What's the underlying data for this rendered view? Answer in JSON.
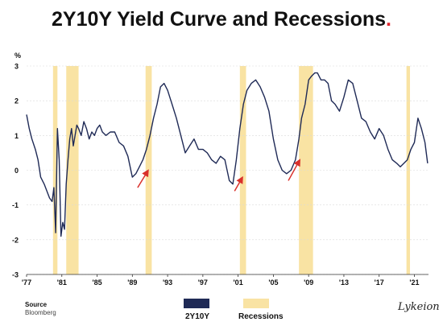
{
  "title": "2Y10Y Yield Curve and Recessions",
  "title_dot": ".",
  "source": {
    "label": "Source",
    "value": "Bloomberg"
  },
  "signature": "Lykeion",
  "colors": {
    "series": "#1f2a56",
    "recession": "#f9e3a3",
    "arrow": "#d9302b",
    "accent": "#e0262e",
    "grid": "#d9d9d9"
  },
  "chart_data": {
    "type": "line",
    "title": "2Y10Y Yield Curve and Recessions",
    "ylabel": "%",
    "xlabel": "",
    "xlim": [
      1977,
      2022.6
    ],
    "ylim": [
      -3,
      3
    ],
    "x_ticks": [
      {
        "value": 1977,
        "label": "'77"
      },
      {
        "value": 1981,
        "label": "'81"
      },
      {
        "value": 1985,
        "label": "'85"
      },
      {
        "value": 1989,
        "label": "'89"
      },
      {
        "value": 1993,
        "label": "'93"
      },
      {
        "value": 1997,
        "label": "'97"
      },
      {
        "value": 2001,
        "label": "'01"
      },
      {
        "value": 2005,
        "label": "'05"
      },
      {
        "value": 2009,
        "label": "'09"
      },
      {
        "value": 2013,
        "label": "'13"
      },
      {
        "value": 2017,
        "label": "'17"
      },
      {
        "value": 2021,
        "label": "'21"
      }
    ],
    "y_ticks": [
      {
        "value": 3,
        "label": "3"
      },
      {
        "value": 2,
        "label": "2"
      },
      {
        "value": 1,
        "label": "1"
      },
      {
        "value": 0,
        "label": "0"
      },
      {
        "value": -1,
        "label": "-1"
      },
      {
        "value": -2,
        "label": "-2"
      },
      {
        "value": -3,
        "label": "-3"
      }
    ],
    "grid": "horizontal",
    "legend_position": "bottom-center",
    "legend": [
      {
        "name": "2Y10Y",
        "kind": "line"
      },
      {
        "name": "Recessions",
        "kind": "band"
      }
    ],
    "series": [
      {
        "name": "2Y10Y",
        "x": [
          1977.0,
          1977.3,
          1977.6,
          1978.0,
          1978.3,
          1978.6,
          1979.0,
          1979.3,
          1979.6,
          1979.9,
          1980.1,
          1980.3,
          1980.5,
          1980.7,
          1980.9,
          1981.1,
          1981.3,
          1981.5,
          1981.7,
          1981.9,
          1982.1,
          1982.3,
          1982.5,
          1982.7,
          1982.9,
          1983.2,
          1983.5,
          1983.8,
          1984.1,
          1984.4,
          1984.7,
          1985.0,
          1985.3,
          1985.6,
          1986.0,
          1986.5,
          1987.0,
          1987.5,
          1988.0,
          1988.5,
          1989.0,
          1989.4,
          1989.8,
          1990.2,
          1990.6,
          1991.0,
          1991.4,
          1991.8,
          1992.2,
          1992.6,
          1993.0,
          1993.5,
          1994.0,
          1994.5,
          1995.0,
          1995.5,
          1996.0,
          1996.5,
          1997.0,
          1997.5,
          1998.0,
          1998.5,
          1999.0,
          1999.5,
          2000.0,
          2000.4,
          2000.8,
          2001.2,
          2001.6,
          2002.0,
          2002.5,
          2003.0,
          2003.5,
          2004.0,
          2004.5,
          2005.0,
          2005.5,
          2006.0,
          2006.5,
          2007.0,
          2007.5,
          2007.9,
          2008.2,
          2008.6,
          2009.0,
          2009.3,
          2009.7,
          2010.0,
          2010.4,
          2010.8,
          2011.2,
          2011.6,
          2012.0,
          2012.5,
          2013.0,
          2013.5,
          2014.0,
          2014.5,
          2015.0,
          2015.5,
          2016.0,
          2016.5,
          2017.0,
          2017.5,
          2018.0,
          2018.5,
          2019.0,
          2019.4,
          2019.8,
          2020.2,
          2020.6,
          2021.0,
          2021.4,
          2021.8,
          2022.2,
          2022.5
        ],
        "values": [
          1.6,
          1.2,
          0.9,
          0.6,
          0.3,
          -0.2,
          -0.4,
          -0.6,
          -0.8,
          -0.9,
          -0.5,
          -1.8,
          1.2,
          0.3,
          -1.9,
          -1.5,
          -1.7,
          -0.4,
          0.3,
          0.9,
          1.2,
          0.7,
          1.0,
          1.3,
          1.2,
          1.0,
          1.4,
          1.2,
          0.9,
          1.1,
          1.0,
          1.2,
          1.3,
          1.1,
          1.0,
          1.1,
          1.1,
          0.8,
          0.7,
          0.4,
          -0.2,
          -0.1,
          0.1,
          0.3,
          0.6,
          1.0,
          1.5,
          1.9,
          2.4,
          2.5,
          2.3,
          1.9,
          1.5,
          1.0,
          0.5,
          0.7,
          0.9,
          0.6,
          0.6,
          0.5,
          0.3,
          0.2,
          0.4,
          0.3,
          -0.3,
          -0.4,
          0.3,
          1.2,
          1.9,
          2.3,
          2.5,
          2.6,
          2.4,
          2.1,
          1.7,
          0.9,
          0.3,
          0.0,
          -0.1,
          0.0,
          0.3,
          0.9,
          1.5,
          1.9,
          2.6,
          2.7,
          2.8,
          2.8,
          2.6,
          2.6,
          2.5,
          2.0,
          1.9,
          1.7,
          2.1,
          2.6,
          2.5,
          2.0,
          1.5,
          1.4,
          1.1,
          0.9,
          1.2,
          1.0,
          0.6,
          0.3,
          0.2,
          0.1,
          0.2,
          0.3,
          0.6,
          0.8,
          1.5,
          1.2,
          0.8,
          0.2
        ]
      }
    ],
    "recessions": [
      [
        1980.0,
        1980.5
      ],
      [
        1981.5,
        1982.9
      ],
      [
        1990.5,
        1991.2
      ],
      [
        2001.2,
        2001.9
      ],
      [
        2007.9,
        2009.5
      ],
      [
        2020.1,
        2020.5
      ]
    ],
    "annotations": [
      {
        "kind": "arrow",
        "from": [
          1989.6,
          -0.5
        ],
        "to": [
          1990.8,
          0.0
        ]
      },
      {
        "kind": "arrow",
        "from": [
          2000.6,
          -0.6
        ],
        "to": [
          2001.5,
          -0.2
        ]
      },
      {
        "kind": "arrow",
        "from": [
          2006.7,
          -0.3
        ],
        "to": [
          2008.0,
          0.3
        ]
      }
    ]
  }
}
